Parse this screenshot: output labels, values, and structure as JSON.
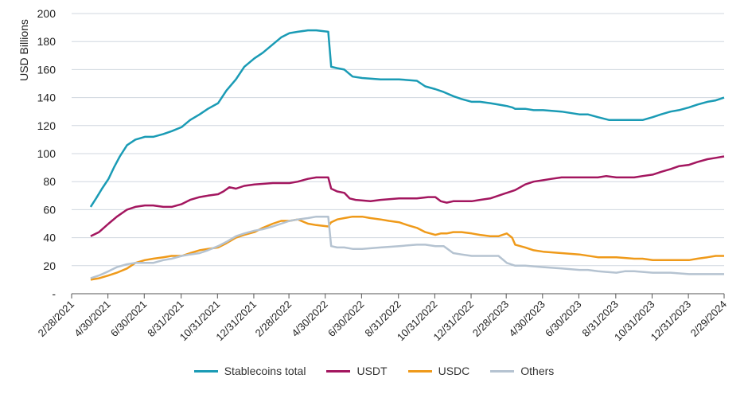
{
  "chart_data": {
    "type": "line",
    "ylabel": "USD Billions",
    "xlabel": "",
    "ylim": [
      0,
      200
    ],
    "yticks": [
      "-",
      "20",
      "40",
      "60",
      "80",
      "100",
      "120",
      "140",
      "160",
      "180",
      "200"
    ],
    "xticks": [
      "2/28/2021",
      "4/30/2021",
      "6/30/2021",
      "8/31/2021",
      "10/31/2021",
      "12/31/2021",
      "2/28/2022",
      "4/30/2022",
      "6/30/2022",
      "8/31/2022",
      "10/31/2022",
      "12/31/2022",
      "2/28/2023",
      "4/30/2023",
      "6/30/2023",
      "8/31/2023",
      "10/31/2023",
      "12/31/2023",
      "2/29/2024"
    ],
    "grid": "horizontal",
    "legend_position": "bottom",
    "series": [
      {
        "name": "Stablecoins total",
        "color": "#1a9bb5",
        "points": [
          [
            "2021-04-01",
            62
          ],
          [
            "2021-04-10",
            68
          ],
          [
            "2021-04-20",
            75
          ],
          [
            "2021-05-01",
            82
          ],
          [
            "2021-05-10",
            90
          ],
          [
            "2021-05-20",
            98
          ],
          [
            "2021-06-01",
            106
          ],
          [
            "2021-06-15",
            110
          ],
          [
            "2021-07-01",
            112
          ],
          [
            "2021-07-15",
            112
          ],
          [
            "2021-08-01",
            114
          ],
          [
            "2021-08-15",
            116
          ],
          [
            "2021-09-01",
            119
          ],
          [
            "2021-09-15",
            124
          ],
          [
            "2021-10-01",
            128
          ],
          [
            "2021-10-15",
            132
          ],
          [
            "2021-11-01",
            136
          ],
          [
            "2021-11-15",
            145
          ],
          [
            "2021-12-01",
            153
          ],
          [
            "2021-12-15",
            162
          ],
          [
            "2022-01-01",
            168
          ],
          [
            "2022-01-15",
            172
          ],
          [
            "2022-02-01",
            178
          ],
          [
            "2022-02-15",
            183
          ],
          [
            "2022-03-01",
            186
          ],
          [
            "2022-03-15",
            187
          ],
          [
            "2022-04-01",
            188
          ],
          [
            "2022-04-15",
            188
          ],
          [
            "2022-05-05",
            187
          ],
          [
            "2022-05-10",
            162
          ],
          [
            "2022-05-20",
            161
          ],
          [
            "2022-06-01",
            160
          ],
          [
            "2022-06-15",
            155
          ],
          [
            "2022-07-01",
            154
          ],
          [
            "2022-08-01",
            153
          ],
          [
            "2022-09-01",
            153
          ],
          [
            "2022-10-01",
            152
          ],
          [
            "2022-10-15",
            148
          ],
          [
            "2022-11-01",
            146
          ],
          [
            "2022-11-15",
            144
          ],
          [
            "2022-12-01",
            141
          ],
          [
            "2022-12-15",
            139
          ],
          [
            "2023-01-01",
            137
          ],
          [
            "2023-01-15",
            137
          ],
          [
            "2023-02-01",
            136
          ],
          [
            "2023-02-15",
            135
          ],
          [
            "2023-03-01",
            134
          ],
          [
            "2023-03-10",
            133
          ],
          [
            "2023-03-15",
            132
          ],
          [
            "2023-04-01",
            132
          ],
          [
            "2023-04-15",
            131
          ],
          [
            "2023-05-01",
            131
          ],
          [
            "2023-06-01",
            130
          ],
          [
            "2023-07-01",
            128
          ],
          [
            "2023-07-15",
            128
          ],
          [
            "2023-08-01",
            126
          ],
          [
            "2023-08-20",
            124
          ],
          [
            "2023-09-01",
            124
          ],
          [
            "2023-09-15",
            124
          ],
          [
            "2023-10-01",
            124
          ],
          [
            "2023-10-15",
            124
          ],
          [
            "2023-11-01",
            126
          ],
          [
            "2023-11-15",
            128
          ],
          [
            "2023-12-01",
            130
          ],
          [
            "2023-12-15",
            131
          ],
          [
            "2024-01-01",
            133
          ],
          [
            "2024-01-15",
            135
          ],
          [
            "2024-02-01",
            137
          ],
          [
            "2024-02-15",
            138
          ],
          [
            "2024-02-29",
            140
          ]
        ]
      },
      {
        "name": "USDT",
        "color": "#a3165f",
        "points": [
          [
            "2021-04-01",
            41
          ],
          [
            "2021-04-15",
            44
          ],
          [
            "2021-05-01",
            50
          ],
          [
            "2021-05-15",
            55
          ],
          [
            "2021-06-01",
            60
          ],
          [
            "2021-06-15",
            62
          ],
          [
            "2021-07-01",
            63
          ],
          [
            "2021-07-15",
            63
          ],
          [
            "2021-08-01",
            62
          ],
          [
            "2021-08-15",
            62
          ],
          [
            "2021-09-01",
            64
          ],
          [
            "2021-09-15",
            67
          ],
          [
            "2021-10-01",
            69
          ],
          [
            "2021-10-15",
            70
          ],
          [
            "2021-11-01",
            71
          ],
          [
            "2021-11-10",
            73
          ],
          [
            "2021-11-20",
            76
          ],
          [
            "2021-12-01",
            75
          ],
          [
            "2021-12-15",
            77
          ],
          [
            "2022-01-01",
            78
          ],
          [
            "2022-02-01",
            79
          ],
          [
            "2022-03-01",
            79
          ],
          [
            "2022-03-15",
            80
          ],
          [
            "2022-04-01",
            82
          ],
          [
            "2022-04-15",
            83
          ],
          [
            "2022-05-05",
            83
          ],
          [
            "2022-05-10",
            75
          ],
          [
            "2022-05-20",
            73
          ],
          [
            "2022-06-01",
            72
          ],
          [
            "2022-06-10",
            68
          ],
          [
            "2022-06-20",
            67
          ],
          [
            "2022-07-15",
            66
          ],
          [
            "2022-08-01",
            67
          ],
          [
            "2022-09-01",
            68
          ],
          [
            "2022-10-01",
            68
          ],
          [
            "2022-10-20",
            69
          ],
          [
            "2022-11-01",
            69
          ],
          [
            "2022-11-10",
            66
          ],
          [
            "2022-11-20",
            65
          ],
          [
            "2022-12-01",
            66
          ],
          [
            "2023-01-01",
            66
          ],
          [
            "2023-01-15",
            67
          ],
          [
            "2023-02-01",
            68
          ],
          [
            "2023-02-15",
            70
          ],
          [
            "2023-03-01",
            72
          ],
          [
            "2023-03-15",
            74
          ],
          [
            "2023-04-01",
            78
          ],
          [
            "2023-04-15",
            80
          ],
          [
            "2023-05-01",
            81
          ],
          [
            "2023-05-15",
            82
          ],
          [
            "2023-06-01",
            83
          ],
          [
            "2023-07-01",
            83
          ],
          [
            "2023-07-15",
            83
          ],
          [
            "2023-08-01",
            83
          ],
          [
            "2023-08-15",
            84
          ],
          [
            "2023-09-01",
            83
          ],
          [
            "2023-10-01",
            83
          ],
          [
            "2023-10-15",
            84
          ],
          [
            "2023-11-01",
            85
          ],
          [
            "2023-11-15",
            87
          ],
          [
            "2023-12-01",
            89
          ],
          [
            "2023-12-15",
            91
          ],
          [
            "2024-01-01",
            92
          ],
          [
            "2024-01-15",
            94
          ],
          [
            "2024-02-01",
            96
          ],
          [
            "2024-02-15",
            97
          ],
          [
            "2024-02-29",
            98
          ]
        ]
      },
      {
        "name": "USDC",
        "color": "#ef9a1a",
        "points": [
          [
            "2021-04-01",
            10
          ],
          [
            "2021-04-15",
            11
          ],
          [
            "2021-05-01",
            13
          ],
          [
            "2021-05-15",
            15
          ],
          [
            "2021-06-01",
            18
          ],
          [
            "2021-06-15",
            22
          ],
          [
            "2021-07-01",
            24
          ],
          [
            "2021-07-15",
            25
          ],
          [
            "2021-08-01",
            26
          ],
          [
            "2021-08-15",
            27
          ],
          [
            "2021-09-01",
            27
          ],
          [
            "2021-09-15",
            29
          ],
          [
            "2021-10-01",
            31
          ],
          [
            "2021-10-15",
            32
          ],
          [
            "2021-11-01",
            33
          ],
          [
            "2021-11-15",
            36
          ],
          [
            "2021-12-01",
            40
          ],
          [
            "2021-12-15",
            42
          ],
          [
            "2022-01-01",
            44
          ],
          [
            "2022-01-15",
            47
          ],
          [
            "2022-02-01",
            50
          ],
          [
            "2022-02-15",
            52
          ],
          [
            "2022-03-01",
            52
          ],
          [
            "2022-03-15",
            53
          ],
          [
            "2022-04-01",
            50
          ],
          [
            "2022-04-15",
            49
          ],
          [
            "2022-05-05",
            48
          ],
          [
            "2022-05-10",
            51
          ],
          [
            "2022-05-20",
            53
          ],
          [
            "2022-06-01",
            54
          ],
          [
            "2022-06-15",
            55
          ],
          [
            "2022-07-01",
            55
          ],
          [
            "2022-07-15",
            54
          ],
          [
            "2022-08-01",
            53
          ],
          [
            "2022-08-15",
            52
          ],
          [
            "2022-09-01",
            51
          ],
          [
            "2022-09-15",
            49
          ],
          [
            "2022-10-01",
            47
          ],
          [
            "2022-10-15",
            44
          ],
          [
            "2022-11-01",
            42
          ],
          [
            "2022-11-10",
            43
          ],
          [
            "2022-11-20",
            43
          ],
          [
            "2022-12-01",
            44
          ],
          [
            "2022-12-15",
            44
          ],
          [
            "2023-01-01",
            43
          ],
          [
            "2023-01-15",
            42
          ],
          [
            "2023-02-01",
            41
          ],
          [
            "2023-02-15",
            41
          ],
          [
            "2023-03-01",
            43
          ],
          [
            "2023-03-10",
            40
          ],
          [
            "2023-03-15",
            35
          ],
          [
            "2023-04-01",
            33
          ],
          [
            "2023-04-15",
            31
          ],
          [
            "2023-05-01",
            30
          ],
          [
            "2023-06-01",
            29
          ],
          [
            "2023-07-01",
            28
          ],
          [
            "2023-08-01",
            26
          ],
          [
            "2023-09-01",
            26
          ],
          [
            "2023-10-01",
            25
          ],
          [
            "2023-10-15",
            25
          ],
          [
            "2023-11-01",
            24
          ],
          [
            "2023-11-15",
            24
          ],
          [
            "2023-12-01",
            24
          ],
          [
            "2024-01-01",
            24
          ],
          [
            "2024-01-15",
            25
          ],
          [
            "2024-02-01",
            26
          ],
          [
            "2024-02-15",
            27
          ],
          [
            "2024-02-29",
            27
          ]
        ]
      },
      {
        "name": "Others",
        "color": "#b5c3d1",
        "points": [
          [
            "2021-04-01",
            11
          ],
          [
            "2021-04-15",
            13
          ],
          [
            "2021-05-01",
            16
          ],
          [
            "2021-05-15",
            19
          ],
          [
            "2021-06-01",
            21
          ],
          [
            "2021-06-15",
            22
          ],
          [
            "2021-07-01",
            22
          ],
          [
            "2021-07-15",
            22
          ],
          [
            "2021-08-01",
            24
          ],
          [
            "2021-08-15",
            25
          ],
          [
            "2021-09-01",
            27
          ],
          [
            "2021-09-15",
            28
          ],
          [
            "2021-10-01",
            29
          ],
          [
            "2021-10-15",
            31
          ],
          [
            "2021-11-01",
            34
          ],
          [
            "2021-11-15",
            37
          ],
          [
            "2021-12-01",
            41
          ],
          [
            "2021-12-15",
            43
          ],
          [
            "2022-01-01",
            45
          ],
          [
            "2022-01-15",
            46
          ],
          [
            "2022-02-01",
            48
          ],
          [
            "2022-02-15",
            50
          ],
          [
            "2022-03-01",
            52
          ],
          [
            "2022-03-15",
            53
          ],
          [
            "2022-04-01",
            54
          ],
          [
            "2022-04-15",
            55
          ],
          [
            "2022-05-05",
            55
          ],
          [
            "2022-05-10",
            34
          ],
          [
            "2022-05-20",
            33
          ],
          [
            "2022-06-01",
            33
          ],
          [
            "2022-06-15",
            32
          ],
          [
            "2022-07-01",
            32
          ],
          [
            "2022-08-01",
            33
          ],
          [
            "2022-09-01",
            34
          ],
          [
            "2022-10-01",
            35
          ],
          [
            "2022-10-15",
            35
          ],
          [
            "2022-11-01",
            34
          ],
          [
            "2022-11-15",
            34
          ],
          [
            "2022-12-01",
            29
          ],
          [
            "2022-12-15",
            28
          ],
          [
            "2023-01-01",
            27
          ],
          [
            "2023-01-15",
            27
          ],
          [
            "2023-02-01",
            27
          ],
          [
            "2023-02-15",
            27
          ],
          [
            "2023-03-01",
            22
          ],
          [
            "2023-03-15",
            20
          ],
          [
            "2023-04-01",
            20
          ],
          [
            "2023-05-01",
            19
          ],
          [
            "2023-06-01",
            18
          ],
          [
            "2023-07-01",
            17
          ],
          [
            "2023-07-15",
            17
          ],
          [
            "2023-08-01",
            16
          ],
          [
            "2023-09-01",
            15
          ],
          [
            "2023-09-15",
            16
          ],
          [
            "2023-10-01",
            16
          ],
          [
            "2023-11-01",
            15
          ],
          [
            "2023-12-01",
            15
          ],
          [
            "2024-01-01",
            14
          ],
          [
            "2024-02-01",
            14
          ],
          [
            "2024-02-29",
            14
          ]
        ]
      }
    ]
  }
}
